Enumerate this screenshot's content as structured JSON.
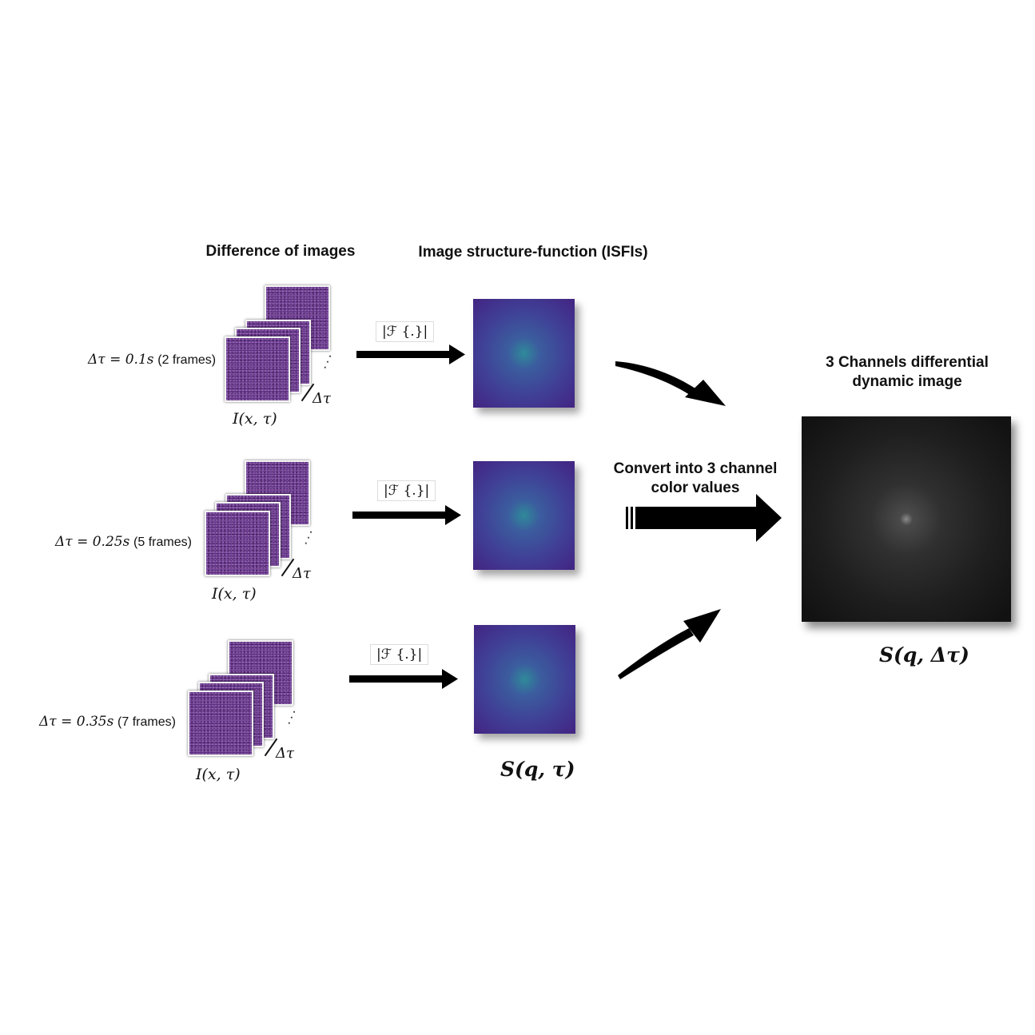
{
  "headers": {
    "difference": "Difference of images",
    "isf": "Image structure-function (ISFIs)",
    "ddi_line1": "3 Channels differential",
    "ddi_line2": "dynamic image",
    "convert_line1": "Convert into 3 channel",
    "convert_line2": "color values"
  },
  "rows": [
    {
      "delta_math": "Δτ = 0.1s",
      "frames_note": "(2 frames)",
      "ixt": "I(x, τ)",
      "dtau": "Δτ",
      "fourier": "|ℱ {.}|"
    },
    {
      "delta_math": "Δτ = 0.25s",
      "frames_note": "(5 frames)",
      "ixt": "I(x, τ)",
      "dtau": "Δτ",
      "fourier": "|ℱ {.}|"
    },
    {
      "delta_math": "Δτ = 0.35s",
      "frames_note": "(7 frames)",
      "ixt": "I(x, τ)",
      "dtau": "Δτ",
      "fourier": "|ℱ {.}|"
    }
  ],
  "sq_tau": "S(q, τ)",
  "sq_dtau": "S(q, Δτ)",
  "colors": {
    "frame": "#5b2a7e",
    "isf_center": "#2f8a9a",
    "isf_edge": "#440c63",
    "ddi": "#1e1e1e"
  }
}
